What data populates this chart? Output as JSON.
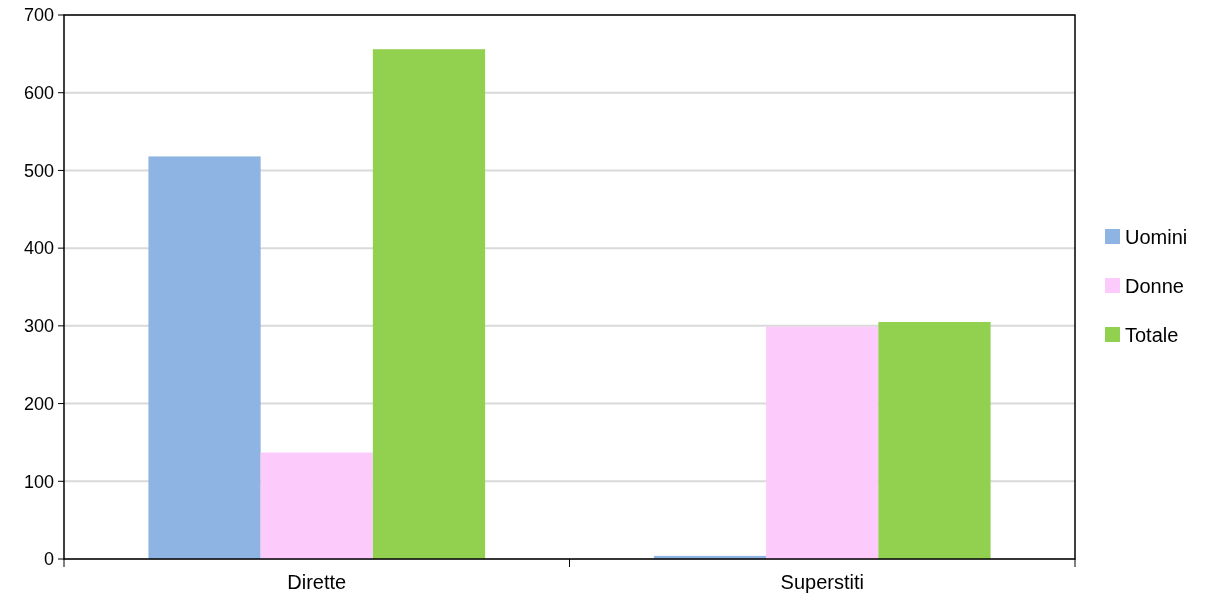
{
  "chart_data": {
    "type": "bar",
    "categories": [
      "Dirette",
      "Superstiti"
    ],
    "series": [
      {
        "name": "Uomini",
        "color": "#8eb4e3",
        "values": [
          518,
          4
        ]
      },
      {
        "name": "Donne",
        "color": "#fccbfc",
        "values": [
          137,
          299
        ]
      },
      {
        "name": "Totale",
        "color": "#92d050",
        "values": [
          656,
          305
        ]
      }
    ],
    "ylim": [
      0,
      700
    ],
    "yticks": [
      0,
      100,
      200,
      300,
      400,
      500,
      600,
      700
    ],
    "grid": "y",
    "legend": "right"
  }
}
